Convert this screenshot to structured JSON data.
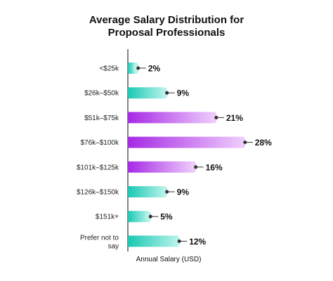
{
  "chart_data": {
    "type": "bar",
    "orientation": "horizontal",
    "title_lines": [
      "Average Salary Distribution for",
      "Proposal Professionals"
    ],
    "xlabel": "Annual Salary (USD)",
    "ylabel": "",
    "categories": [
      "<$25k",
      "$26k–$50k",
      "$51k–$75k",
      "$76k–$100k",
      "$101k–$125k",
      "$126k–$150k",
      "$151k+",
      "Prefer not to say"
    ],
    "values": [
      2,
      9,
      21,
      28,
      16,
      9,
      5,
      12
    ],
    "value_labels": [
      "2%",
      "9%",
      "21%",
      "28%",
      "16%",
      "9%",
      "5%",
      "12%"
    ],
    "bar_colors": [
      "teal",
      "teal",
      "purple",
      "purple",
      "purple",
      "teal",
      "teal",
      "teal"
    ],
    "colors": {
      "teal_start": "#19c9b3",
      "teal_end": "#b6f2ea",
      "purple_start": "#a629e6",
      "purple_end": "#eecbfb",
      "axis": "#333333"
    },
    "grid": false,
    "legend": "none"
  }
}
